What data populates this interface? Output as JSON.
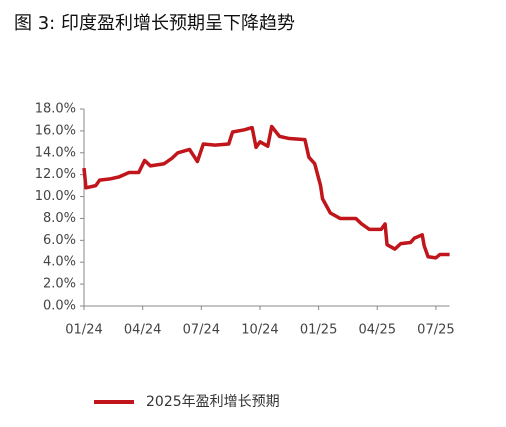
{
  "chart_data": {
    "type": "line",
    "title": "图 3:  印度盈利增长预期呈下降趋势",
    "x": [
      0,
      0.1,
      0.6,
      0.8,
      1.3,
      1.8,
      2.3,
      2.8,
      3.1,
      3.4,
      4.1,
      4.5,
      4.8,
      5.4,
      5.8,
      6.1,
      6.7,
      7.4,
      7.6,
      8.2,
      8.6,
      8.8,
      9.0,
      9.4,
      9.6,
      10.0,
      10.5,
      11.3,
      11.5,
      11.8,
      12.1,
      12.2,
      12.6,
      13.1,
      13.9,
      14.2,
      14.6,
      15.2,
      15.4,
      15.5,
      15.9,
      16.2,
      16.7,
      16.9,
      17.3,
      17.4,
      17.6,
      18.0,
      18.2,
      18.7
    ],
    "series": [
      {
        "name": "2025年盈利增长预期",
        "color": "#c0151b",
        "values": [
          12.6,
          10.8,
          11.0,
          11.5,
          11.6,
          11.8,
          12.2,
          12.2,
          13.3,
          12.8,
          13.0,
          13.5,
          14.0,
          14.3,
          13.2,
          14.8,
          14.7,
          14.8,
          15.9,
          16.1,
          16.3,
          14.5,
          15.0,
          14.6,
          16.4,
          15.5,
          15.3,
          15.2,
          13.6,
          13.0,
          11.0,
          9.8,
          8.5,
          8.0,
          8.0,
          7.5,
          7.0,
          7.0,
          7.5,
          5.6,
          5.2,
          5.7,
          5.8,
          6.2,
          6.5,
          5.5,
          4.5,
          4.4,
          4.7,
          4.7
        ]
      }
    ],
    "xlim": [
      0,
      18.7
    ],
    "xticks": [
      {
        "value": 0,
        "label": "01/24"
      },
      {
        "value": 3,
        "label": "04/24"
      },
      {
        "value": 6,
        "label": "07/24"
      },
      {
        "value": 9,
        "label": "10/24"
      },
      {
        "value": 12,
        "label": "01/25"
      },
      {
        "value": 15,
        "label": "04/25"
      },
      {
        "value": 18,
        "label": "07/25"
      }
    ],
    "ylim": [
      0,
      18
    ],
    "yticks": [
      {
        "value": 0,
        "label": "0.0%"
      },
      {
        "value": 2,
        "label": "2.0%"
      },
      {
        "value": 4,
        "label": "4.0%"
      },
      {
        "value": 6,
        "label": "6.0%"
      },
      {
        "value": 8,
        "label": "8.0%"
      },
      {
        "value": 10,
        "label": "10.0%"
      },
      {
        "value": 12,
        "label": "12.0%"
      },
      {
        "value": 14,
        "label": "14.0%"
      },
      {
        "value": 16,
        "label": "16.0%"
      },
      {
        "value": 18,
        "label": "18.0%"
      }
    ],
    "grid": false,
    "legend": "bottom"
  }
}
